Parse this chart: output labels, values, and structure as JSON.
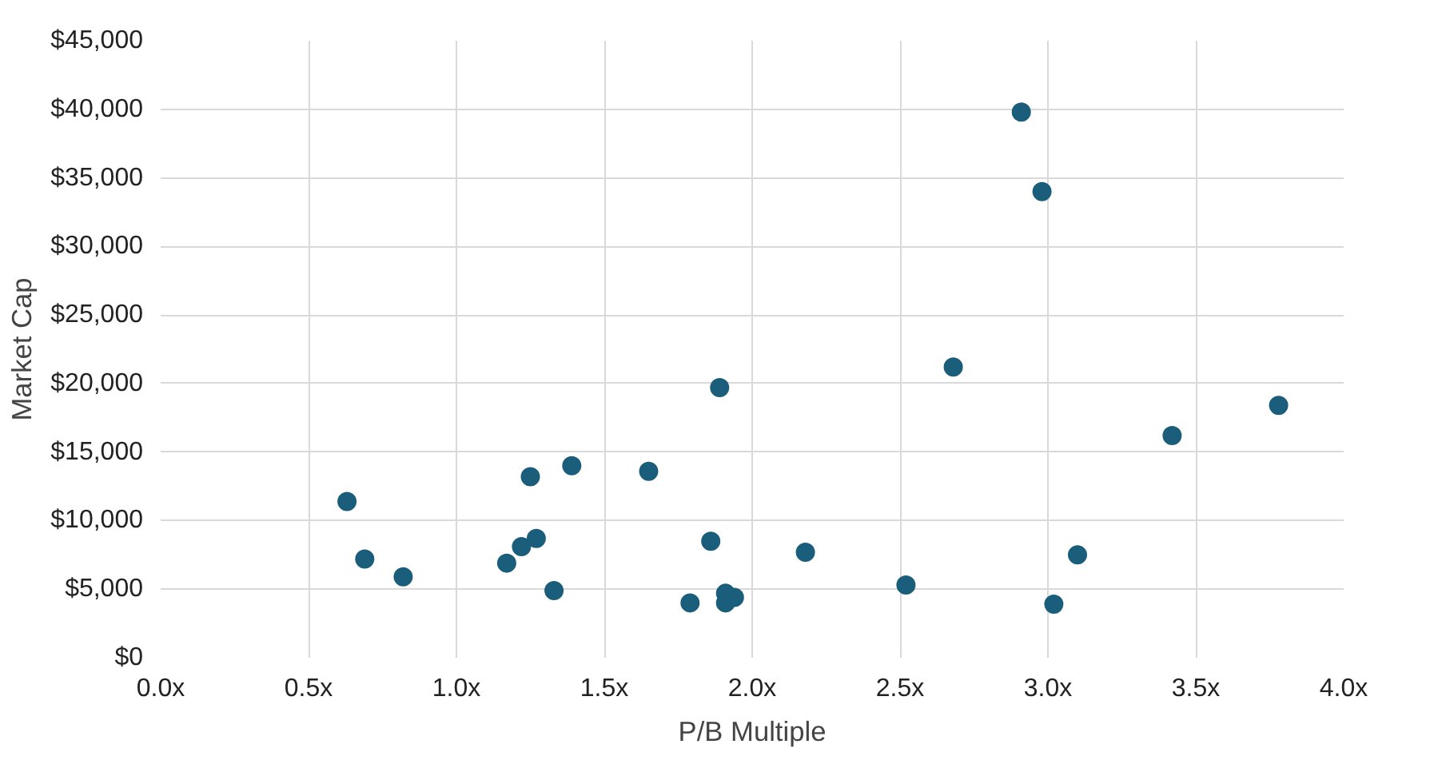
{
  "chart_data": {
    "type": "scatter",
    "xlabel": "P/B Multiple",
    "ylabel": "Market Cap",
    "xlim": [
      0,
      4
    ],
    "ylim": [
      0,
      45000
    ],
    "xticks": [
      {
        "value": 0,
        "label": "0.0x"
      },
      {
        "value": 0.5,
        "label": "0.5x"
      },
      {
        "value": 1,
        "label": "1.0x"
      },
      {
        "value": 1.5,
        "label": "1.5x"
      },
      {
        "value": 2,
        "label": "2.0x"
      },
      {
        "value": 2.5,
        "label": "2.5x"
      },
      {
        "value": 3,
        "label": "3.0x"
      },
      {
        "value": 3.5,
        "label": "3.5x"
      },
      {
        "value": 4,
        "label": "4.0x"
      }
    ],
    "yticks": [
      {
        "value": 0,
        "label": "$0"
      },
      {
        "value": 5000,
        "label": "$5,000"
      },
      {
        "value": 10000,
        "label": "$10,000"
      },
      {
        "value": 15000,
        "label": "$15,000"
      },
      {
        "value": 20000,
        "label": "$20,000"
      },
      {
        "value": 25000,
        "label": "$25,000"
      },
      {
        "value": 30000,
        "label": "$30,000"
      },
      {
        "value": 35000,
        "label": "$35,000"
      },
      {
        "value": 40000,
        "label": "$40,000"
      },
      {
        "value": 45000,
        "label": "$45,000"
      }
    ],
    "grid": true,
    "marker": "circle",
    "series": [
      {
        "color": "#1b5e7b",
        "x": [
          0.63,
          0.69,
          0.82,
          1.17,
          1.22,
          1.27,
          1.25,
          1.33,
          1.39,
          1.65,
          1.79,
          1.86,
          1.89,
          1.91,
          1.91,
          1.94,
          2.18,
          2.52,
          2.68,
          2.91,
          2.98,
          3.02,
          3.1,
          3.42,
          3.78
        ],
        "values": [
          11400,
          7200,
          5900,
          6900,
          8100,
          8700,
          13200,
          4900,
          14000,
          13600,
          4000,
          8500,
          19700,
          4700,
          4000,
          4400,
          7700,
          5300,
          21200,
          39800,
          34000,
          3900,
          7500,
          16200,
          18400
        ]
      }
    ]
  }
}
